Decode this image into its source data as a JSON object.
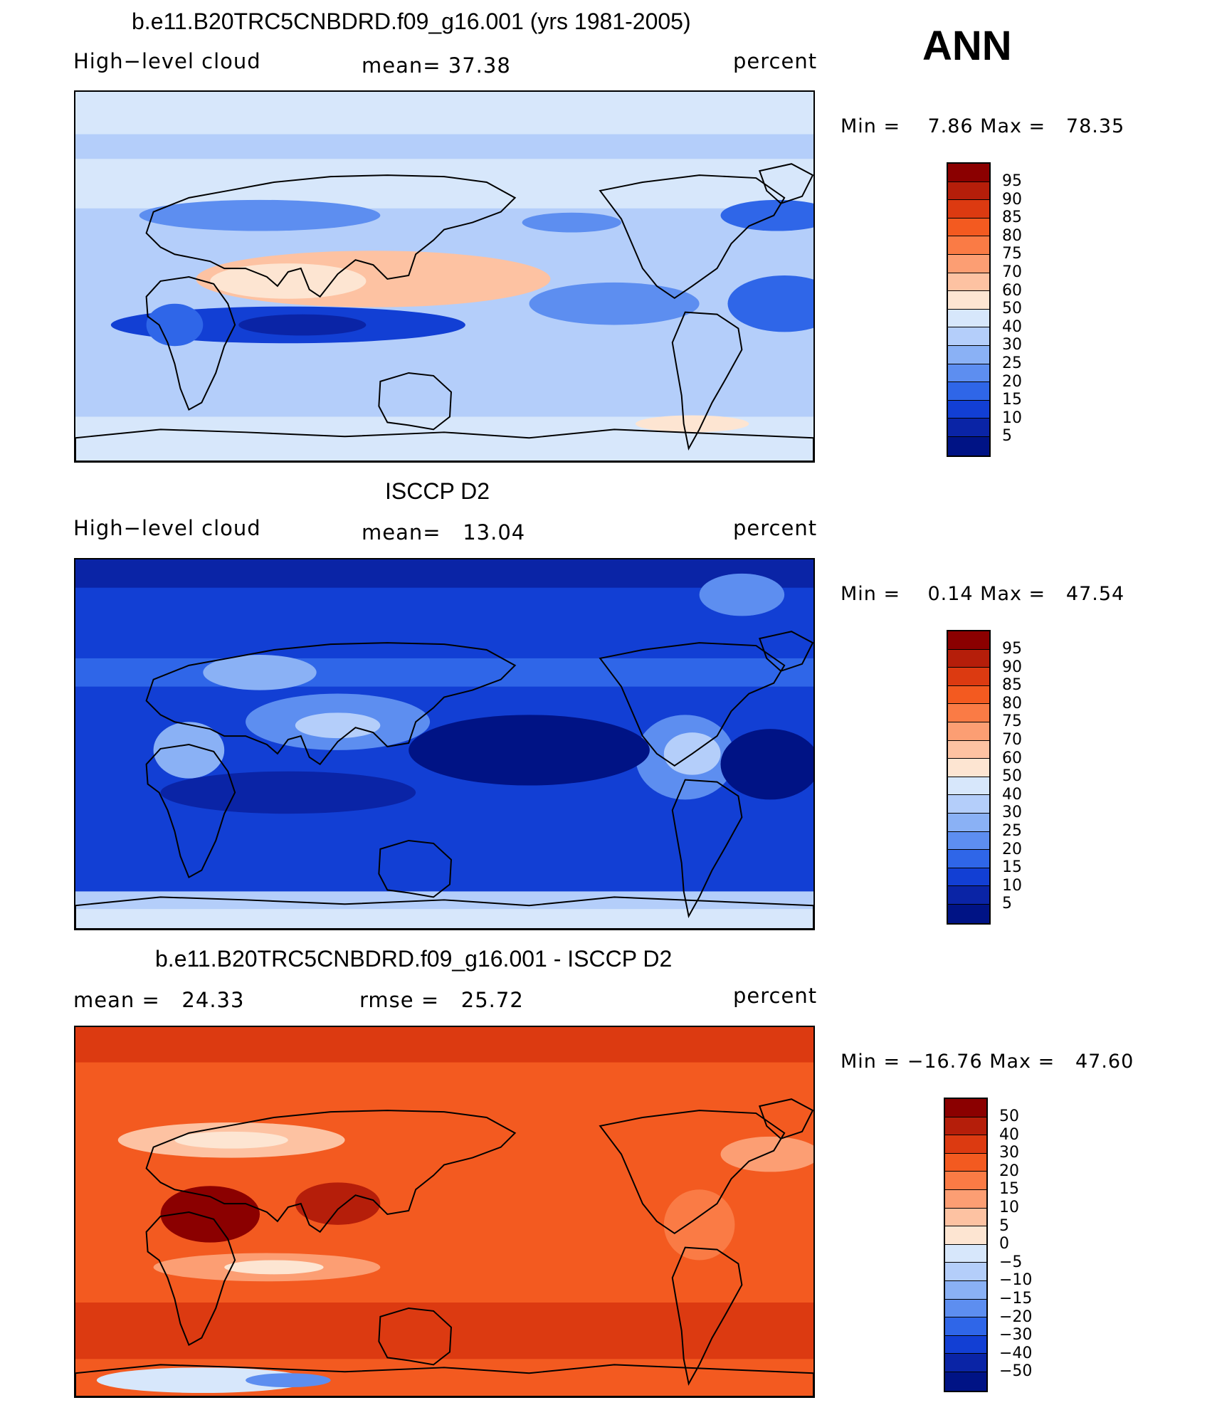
{
  "season": "ANN",
  "panels": [
    {
      "title": "b.e11.B20TRC5CNBDRD.f09_g16.001 (yrs 1981-2005)",
      "left_label": "High−level cloud",
      "center_label": "mean=   37.38",
      "right_label": "percent",
      "minmax": "Min =    7.86 Max =   78.35",
      "field": "model",
      "colorbar": {
        "labels": [
          "95",
          "90",
          "85",
          "80",
          "75",
          "70",
          "60",
          "50",
          "40",
          "30",
          "25",
          "20",
          "15",
          "10",
          "5"
        ],
        "colors": [
          "#8b0000",
          "#b51e0a",
          "#dc3a11",
          "#f35a20",
          "#fa7b45",
          "#fc9e73",
          "#fdc2a2",
          "#fde5d2",
          "#d7e7fb",
          "#b4cefa",
          "#8ab1f5",
          "#5d8ef0",
          "#2f66e8",
          "#123fd4",
          "#0a24a6",
          "#001385"
        ]
      }
    },
    {
      "title": "ISCCP D2",
      "left_label": "High−level cloud",
      "center_label": "mean=   13.04",
      "right_label": "percent",
      "minmax": "Min =    0.14 Max =   47.54",
      "field": "obs",
      "colorbar": {
        "labels": [
          "95",
          "90",
          "85",
          "80",
          "75",
          "70",
          "60",
          "50",
          "40",
          "30",
          "25",
          "20",
          "15",
          "10",
          "5"
        ],
        "colors": [
          "#8b0000",
          "#b51e0a",
          "#dc3a11",
          "#f35a20",
          "#fa7b45",
          "#fc9e73",
          "#fdc2a2",
          "#fde5d2",
          "#d7e7fb",
          "#b4cefa",
          "#8ab1f5",
          "#5d8ef0",
          "#2f66e8",
          "#123fd4",
          "#0a24a6",
          "#001385"
        ]
      }
    },
    {
      "title": "b.e11.B20TRC5CNBDRD.f09_g16.001 - ISCCP D2",
      "left_label": "mean =   24.33",
      "center_label": "rmse =   25.72",
      "right_label": "percent",
      "minmax": "Min = −16.76 Max =   47.60",
      "field": "diff",
      "colorbar": {
        "labels": [
          "50",
          "40",
          "30",
          "20",
          "15",
          "10",
          "5",
          "0",
          "−5",
          "−10",
          "−15",
          "−20",
          "−30",
          "−40",
          "−50"
        ],
        "colors": [
          "#8b0000",
          "#b51e0a",
          "#dc3a11",
          "#f35a20",
          "#fa7b45",
          "#fc9e73",
          "#fdc2a2",
          "#fde5d2",
          "#d7e7fb",
          "#b4cefa",
          "#8ab1f5",
          "#5d8ef0",
          "#2f66e8",
          "#123fd4",
          "#0a24a6",
          "#001385"
        ]
      }
    }
  ]
}
